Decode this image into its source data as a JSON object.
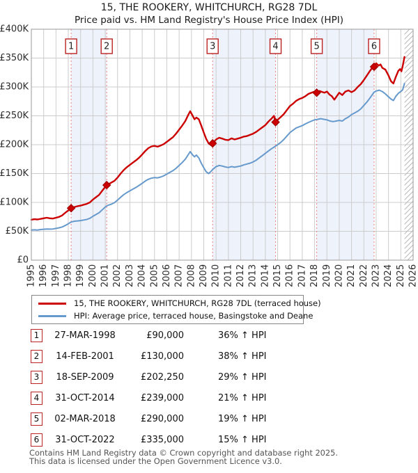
{
  "title": "15, THE ROOKERY, WHITCHURCH, RG28 7DL",
  "subtitle": "Price paid vs. HM Land Registry's House Price Index (HPI)",
  "legend": {
    "items": [
      {
        "label": "15, THE ROOKERY, WHITCHURCH, RG28 7DL (terraced house)",
        "color": "#cc0000"
      },
      {
        "label": "HPI: Average price, terraced house, Basingstoke and Deane",
        "color": "#6699cc"
      }
    ]
  },
  "sales": [
    {
      "n": "1",
      "date": "27-MAR-1998",
      "year": 1998.23,
      "price_k": 90,
      "price": "£90,000",
      "hpi": "36% ↑ HPI"
    },
    {
      "n": "2",
      "date": "14-FEB-2001",
      "year": 2001.12,
      "price_k": 130,
      "price": "£130,000",
      "hpi": "38% ↑ HPI"
    },
    {
      "n": "3",
      "date": "18-SEP-2009",
      "year": 2009.72,
      "price_k": 202.25,
      "price": "£202,250",
      "hpi": "29% ↑ HPI"
    },
    {
      "n": "4",
      "date": "31-OCT-2014",
      "year": 2014.83,
      "price_k": 239,
      "price": "£239,000",
      "hpi": "21% ↑ HPI"
    },
    {
      "n": "5",
      "date": "02-MAR-2018",
      "year": 2018.17,
      "price_k": 290,
      "price": "£290,000",
      "hpi": "19% ↑ HPI"
    },
    {
      "n": "6",
      "date": "31-OCT-2022",
      "year": 2022.83,
      "price_k": 335,
      "price": "£335,000",
      "hpi": "15% ↑ HPI"
    }
  ],
  "footer": {
    "line1": "Contains HM Land Registry data © Crown copyright and database right 2025.",
    "line2": "This data is licensed under the Open Government Licence v3.0."
  },
  "chart_data": {
    "type": "line",
    "title": "15, THE ROOKERY, WHITCHURCH, RG28 7DL — Price paid vs. HPI",
    "x_axis": {
      "range": [
        1995,
        2026
      ],
      "ticks": [
        1995,
        1996,
        1997,
        1998,
        1999,
        2000,
        2001,
        2002,
        2003,
        2004,
        2005,
        2006,
        2007,
        2008,
        2009,
        2010,
        2011,
        2012,
        2013,
        2014,
        2015,
        2016,
        2017,
        2018,
        2019,
        2020,
        2021,
        2022,
        2023,
        2024,
        2025,
        2026
      ]
    },
    "y_axis": {
      "range_k": [
        0,
        400
      ],
      "tick_values_k": [
        0,
        50,
        100,
        150,
        200,
        250,
        300,
        350,
        400
      ],
      "tick_labels": [
        "£0",
        "£50K",
        "£100K",
        "£150K",
        "£200K",
        "£250K",
        "£300K",
        "£350K",
        "£400K"
      ]
    },
    "grid": true,
    "legend_position": "below",
    "ownership_bands": [
      [
        1998.23,
        2001.12
      ],
      [
        2009.72,
        2014.83
      ],
      [
        2018.17,
        2022.83
      ]
    ],
    "band_color": "#edf2fb",
    "future_hatch_start": 2025.3,
    "series": [
      {
        "name": "15, THE ROOKERY, WHITCHURCH, RG28 7DL (terraced house)",
        "color": "#cc0000",
        "unit": "GBP thousands",
        "points": [
          [
            1995.0,
            70
          ],
          [
            1995.25,
            71
          ],
          [
            1995.5,
            70.5
          ],
          [
            1995.75,
            71.5
          ],
          [
            1996.0,
            72.5
          ],
          [
            1996.25,
            73.5
          ],
          [
            1996.5,
            72.5
          ],
          [
            1996.75,
            72
          ],
          [
            1997.0,
            73.5
          ],
          [
            1997.25,
            75
          ],
          [
            1997.5,
            77.5
          ],
          [
            1997.75,
            82
          ],
          [
            1998.0,
            86
          ],
          [
            1998.23,
            90
          ],
          [
            1998.5,
            92
          ],
          [
            1998.75,
            93.5
          ],
          [
            1999.0,
            94.5
          ],
          [
            1999.25,
            96
          ],
          [
            1999.5,
            97.5
          ],
          [
            1999.75,
            100
          ],
          [
            2000.0,
            105
          ],
          [
            2000.25,
            109
          ],
          [
            2000.5,
            113
          ],
          [
            2000.75,
            120
          ],
          [
            2001.0,
            127
          ],
          [
            2001.12,
            130
          ],
          [
            2001.3,
            132
          ],
          [
            2001.5,
            134.5
          ],
          [
            2001.75,
            137.5
          ],
          [
            2002.0,
            143
          ],
          [
            2002.25,
            150
          ],
          [
            2002.5,
            156
          ],
          [
            2002.75,
            161
          ],
          [
            2003.0,
            165
          ],
          [
            2003.25,
            169
          ],
          [
            2003.5,
            173
          ],
          [
            2003.75,
            177.5
          ],
          [
            2004.0,
            183
          ],
          [
            2004.25,
            189
          ],
          [
            2004.5,
            194
          ],
          [
            2004.75,
            197
          ],
          [
            2005.0,
            198
          ],
          [
            2005.25,
            196.5
          ],
          [
            2005.5,
            198.5
          ],
          [
            2005.75,
            201
          ],
          [
            2006.0,
            205
          ],
          [
            2006.25,
            209
          ],
          [
            2006.5,
            213
          ],
          [
            2006.75,
            219
          ],
          [
            2007.0,
            226
          ],
          [
            2007.25,
            233
          ],
          [
            2007.5,
            241
          ],
          [
            2007.75,
            252
          ],
          [
            2007.9,
            258
          ],
          [
            2008.1,
            250
          ],
          [
            2008.25,
            244
          ],
          [
            2008.4,
            247
          ],
          [
            2008.6,
            244
          ],
          [
            2008.8,
            233
          ],
          [
            2009.0,
            221
          ],
          [
            2009.2,
            210
          ],
          [
            2009.4,
            202
          ],
          [
            2009.6,
            199
          ],
          [
            2009.72,
            202.25
          ],
          [
            2010.0,
            209
          ],
          [
            2010.25,
            212
          ],
          [
            2010.5,
            210.5
          ],
          [
            2010.75,
            208.5
          ],
          [
            2011.0,
            208
          ],
          [
            2011.25,
            211
          ],
          [
            2011.5,
            209
          ],
          [
            2011.75,
            210.5
          ],
          [
            2012.0,
            212
          ],
          [
            2012.25,
            214
          ],
          [
            2012.5,
            215
          ],
          [
            2012.75,
            217
          ],
          [
            2013.0,
            219
          ],
          [
            2013.25,
            222
          ],
          [
            2013.5,
            226
          ],
          [
            2013.75,
            230
          ],
          [
            2014.0,
            234
          ],
          [
            2014.25,
            240
          ],
          [
            2014.5,
            245
          ],
          [
            2014.7,
            250
          ],
          [
            2014.83,
            239
          ],
          [
            2015.0,
            243
          ],
          [
            2015.25,
            248
          ],
          [
            2015.5,
            253
          ],
          [
            2015.75,
            260
          ],
          [
            2016.0,
            267
          ],
          [
            2016.25,
            271
          ],
          [
            2016.5,
            276
          ],
          [
            2016.75,
            279
          ],
          [
            2017.0,
            281
          ],
          [
            2017.25,
            284
          ],
          [
            2017.5,
            288
          ],
          [
            2017.75,
            290
          ],
          [
            2018.0,
            292
          ],
          [
            2018.17,
            290
          ],
          [
            2018.4,
            293
          ],
          [
            2018.6,
            291.5
          ],
          [
            2018.8,
            290
          ],
          [
            2019.0,
            292
          ],
          [
            2019.2,
            287
          ],
          [
            2019.4,
            284
          ],
          [
            2019.6,
            278
          ],
          [
            2019.8,
            284
          ],
          [
            2020.0,
            290
          ],
          [
            2020.25,
            286
          ],
          [
            2020.5,
            292
          ],
          [
            2020.75,
            294
          ],
          [
            2021.0,
            291
          ],
          [
            2021.25,
            294
          ],
          [
            2021.5,
            300
          ],
          [
            2021.75,
            305
          ],
          [
            2022.0,
            312
          ],
          [
            2022.25,
            320
          ],
          [
            2022.5,
            328
          ],
          [
            2022.65,
            332
          ],
          [
            2022.83,
            335
          ],
          [
            2023.0,
            341
          ],
          [
            2023.2,
            337
          ],
          [
            2023.35,
            339
          ],
          [
            2023.5,
            333
          ],
          [
            2023.75,
            330
          ],
          [
            2024.0,
            320
          ],
          [
            2024.2,
            310
          ],
          [
            2024.4,
            306
          ],
          [
            2024.6,
            318
          ],
          [
            2024.8,
            328
          ],
          [
            2024.95,
            331
          ],
          [
            2025.05,
            327
          ],
          [
            2025.15,
            336
          ],
          [
            2025.3,
            352
          ]
        ]
      },
      {
        "name": "HPI: Average price, terraced house, Basingstoke and Deane",
        "color": "#6699cc",
        "unit": "GBP thousands",
        "points": [
          [
            1995.0,
            52
          ],
          [
            1995.25,
            52.5
          ],
          [
            1995.5,
            52.2
          ],
          [
            1995.75,
            53
          ],
          [
            1996.0,
            53.5
          ],
          [
            1996.25,
            54
          ],
          [
            1996.5,
            53.7
          ],
          [
            1996.75,
            54
          ],
          [
            1997.0,
            55
          ],
          [
            1997.25,
            56
          ],
          [
            1997.5,
            57.5
          ],
          [
            1997.75,
            60
          ],
          [
            1998.0,
            63
          ],
          [
            1998.23,
            66
          ],
          [
            1998.5,
            67.5
          ],
          [
            1998.75,
            68
          ],
          [
            1999.0,
            68.5
          ],
          [
            1999.25,
            69.5
          ],
          [
            1999.5,
            70.5
          ],
          [
            1999.75,
            72.5
          ],
          [
            2000.0,
            76
          ],
          [
            2000.25,
            79
          ],
          [
            2000.5,
            82
          ],
          [
            2000.75,
            87
          ],
          [
            2001.0,
            92
          ],
          [
            2001.12,
            94
          ],
          [
            2001.3,
            95.5
          ],
          [
            2001.5,
            97
          ],
          [
            2001.75,
            99.5
          ],
          [
            2002.0,
            104
          ],
          [
            2002.25,
            109
          ],
          [
            2002.5,
            113.5
          ],
          [
            2002.75,
            117
          ],
          [
            2003.0,
            120
          ],
          [
            2003.25,
            123
          ],
          [
            2003.5,
            126
          ],
          [
            2003.75,
            129.5
          ],
          [
            2004.0,
            133
          ],
          [
            2004.25,
            137
          ],
          [
            2004.5,
            140
          ],
          [
            2004.75,
            142
          ],
          [
            2005.0,
            143
          ],
          [
            2005.25,
            142.5
          ],
          [
            2005.5,
            144
          ],
          [
            2005.75,
            146
          ],
          [
            2006.0,
            149
          ],
          [
            2006.25,
            152
          ],
          [
            2006.5,
            155
          ],
          [
            2006.75,
            159
          ],
          [
            2007.0,
            164
          ],
          [
            2007.25,
            169
          ],
          [
            2007.5,
            175
          ],
          [
            2007.75,
            183
          ],
          [
            2007.9,
            188
          ],
          [
            2008.1,
            182
          ],
          [
            2008.25,
            179
          ],
          [
            2008.4,
            182
          ],
          [
            2008.6,
            177
          ],
          [
            2008.8,
            168
          ],
          [
            2009.0,
            160
          ],
          [
            2009.2,
            153
          ],
          [
            2009.4,
            150
          ],
          [
            2009.6,
            154
          ],
          [
            2009.72,
            157
          ],
          [
            2010.0,
            162
          ],
          [
            2010.25,
            164
          ],
          [
            2010.5,
            163
          ],
          [
            2010.75,
            161.5
          ],
          [
            2011.0,
            160.5
          ],
          [
            2011.25,
            162
          ],
          [
            2011.5,
            161
          ],
          [
            2011.75,
            162
          ],
          [
            2012.0,
            163
          ],
          [
            2012.25,
            165
          ],
          [
            2012.5,
            166.5
          ],
          [
            2012.75,
            168
          ],
          [
            2013.0,
            170
          ],
          [
            2013.25,
            173
          ],
          [
            2013.5,
            177
          ],
          [
            2013.75,
            181
          ],
          [
            2014.0,
            185
          ],
          [
            2014.25,
            189
          ],
          [
            2014.5,
            193
          ],
          [
            2014.83,
            197.5
          ],
          [
            2015.0,
            200
          ],
          [
            2015.25,
            204
          ],
          [
            2015.5,
            209
          ],
          [
            2015.75,
            215
          ],
          [
            2016.0,
            221
          ],
          [
            2016.25,
            225
          ],
          [
            2016.5,
            229
          ],
          [
            2016.75,
            231
          ],
          [
            2017.0,
            233
          ],
          [
            2017.25,
            236
          ],
          [
            2017.5,
            238.5
          ],
          [
            2017.75,
            241
          ],
          [
            2018.0,
            243
          ],
          [
            2018.17,
            243.5
          ],
          [
            2018.5,
            245
          ],
          [
            2018.75,
            244
          ],
          [
            2019.0,
            243
          ],
          [
            2019.25,
            241
          ],
          [
            2019.5,
            240
          ],
          [
            2019.75,
            241
          ],
          [
            2020.0,
            242
          ],
          [
            2020.25,
            241
          ],
          [
            2020.5,
            245
          ],
          [
            2020.75,
            248
          ],
          [
            2021.0,
            252
          ],
          [
            2021.25,
            255
          ],
          [
            2021.5,
            258
          ],
          [
            2021.75,
            262
          ],
          [
            2022.0,
            268
          ],
          [
            2022.25,
            274
          ],
          [
            2022.5,
            281
          ],
          [
            2022.83,
            291
          ],
          [
            2023.0,
            293
          ],
          [
            2023.25,
            294.5
          ],
          [
            2023.5,
            292
          ],
          [
            2023.75,
            288
          ],
          [
            2024.0,
            283
          ],
          [
            2024.2,
            279
          ],
          [
            2024.4,
            276.5
          ],
          [
            2024.6,
            284
          ],
          [
            2024.8,
            289
          ],
          [
            2025.0,
            292
          ],
          [
            2025.15,
            295
          ],
          [
            2025.3,
            306
          ]
        ]
      }
    ]
  }
}
